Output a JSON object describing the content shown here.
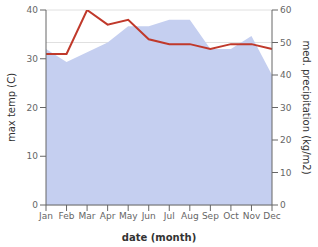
{
  "chart_data": {
    "type": "line",
    "xlabel": "date (month)",
    "ylabel": "max temp (C)",
    "y2label": "med. precipitation (kg/m2)",
    "categories": [
      "Jan",
      "Feb",
      "Mar",
      "Apr",
      "May",
      "Jun",
      "Jul",
      "Aug",
      "Sep",
      "Oct",
      "Nov",
      "Dec"
    ],
    "series": [
      {
        "type": "area",
        "axis": "y2",
        "color": "#c5cff0",
        "values": [
          48,
          44,
          47,
          50,
          55,
          55,
          57,
          57,
          48,
          48,
          52,
          40
        ]
      },
      {
        "type": "line",
        "color": "#c0392b",
        "values": [
          31,
          31,
          40,
          37,
          38,
          34,
          33,
          33,
          32,
          33,
          33,
          32
        ]
      }
    ],
    "ylim": [
      0,
      40
    ],
    "yticks": [
      0,
      10,
      20,
      30,
      40
    ],
    "y2lim": [
      0,
      60
    ],
    "y2ticks": [
      0,
      10,
      20,
      30,
      40,
      50,
      60
    ],
    "grid": true
  }
}
